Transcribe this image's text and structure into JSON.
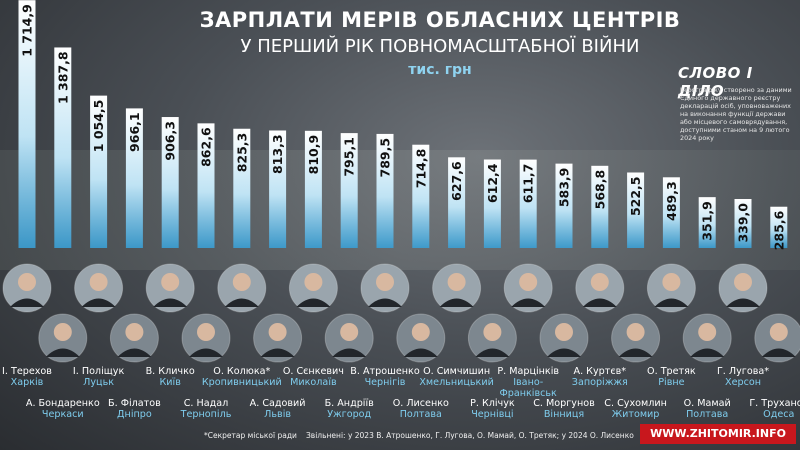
{
  "header": {
    "title": "ЗАРПЛАТИ МЕРІВ ОБЛАСНИХ ЦЕНТРІВ",
    "subtitle": "У ПЕРШИЙ РІК ПОВНОМАСШТАБНОЇ ВІЙНИ",
    "unit": "тис. грн"
  },
  "brand": {
    "logo": "СЛОВО І ДІЛО",
    "note": "Інфографіку створено за даними Єдиного державного реєстру декларацій осіб, уповноважених на виконання функції держави або місцевого самоврядування, доступними станом на 9 лютого 2024 року"
  },
  "footer": {
    "footnote": "*Секретар міської ради",
    "dismissed": "Звільнені: у 2023 В. Атрошенко, Г. Лугова, О. Мамай, О. Третяк; у 2024 О. Лисенко",
    "site": "WWW.ZHITOMIR.INFO"
  },
  "colors": {
    "bar_top": "#ffffff",
    "bar_bottom": "#3a9fd4",
    "value_text": "#111111",
    "city_text": "#7fcdee"
  },
  "chart_data": {
    "type": "bar",
    "title": "ЗАРПЛАТИ МЕРІВ ОБЛАСНИХ ЦЕНТРІВ",
    "subtitle": "У ПЕРШИЙ РІК ПОВНОМАСШТАБНОЇ ВІЙНИ",
    "ylabel": "тис. грн",
    "value_labels": [
      "1 714,9",
      "1 387,8",
      "1 054,5",
      "966,1",
      "906,3",
      "862,6",
      "825,3",
      "813,3",
      "810,9",
      "795,1",
      "789,5",
      "714,8",
      "627,6",
      "612,4",
      "611,7",
      "583,9",
      "568,8",
      "522,5",
      "489,3",
      "351,9",
      "339,0",
      "285,6"
    ],
    "values": [
      1714.9,
      1387.8,
      1054.5,
      966.1,
      906.3,
      862.6,
      825.3,
      813.3,
      810.9,
      795.1,
      789.5,
      714.8,
      627.6,
      612.4,
      611.7,
      583.9,
      568.8,
      522.5,
      489.3,
      351.9,
      339.0,
      285.6
    ],
    "people": [
      {
        "name": "І. Терехов",
        "city": "Харків",
        "row": "top"
      },
      {
        "name": "А. Бондаренко",
        "city": "Черкаси",
        "row": "bottom"
      },
      {
        "name": "І. Поліщук",
        "city": "Луцьк",
        "row": "top"
      },
      {
        "name": "Б. Філатов",
        "city": "Дніпро",
        "row": "bottom"
      },
      {
        "name": "В. Кличко",
        "city": "Київ",
        "row": "top"
      },
      {
        "name": "С. Надал",
        "city": "Тернопіль",
        "row": "bottom"
      },
      {
        "name": "О. Колюка*",
        "city": "Кропивницький",
        "row": "top"
      },
      {
        "name": "А. Садовий",
        "city": "Львів",
        "row": "bottom"
      },
      {
        "name": "О. Сєнкевич",
        "city": "Миколаїв",
        "row": "top"
      },
      {
        "name": "Б. Андріїв",
        "city": "Ужгород",
        "row": "bottom"
      },
      {
        "name": "В. Атрошенко",
        "city": "Чернігів",
        "row": "top"
      },
      {
        "name": "О. Лисенко",
        "city": "Полтава",
        "row": "bottom"
      },
      {
        "name": "О. Симчишин",
        "city": "Хмельницький",
        "row": "top"
      },
      {
        "name": "Р. Клічук",
        "city": "Чернівці",
        "row": "bottom"
      },
      {
        "name": "Р. Марцінків",
        "city": "Івано-Франківськ",
        "row": "top"
      },
      {
        "name": "С. Моргунов",
        "city": "Вінниця",
        "row": "bottom"
      },
      {
        "name": "А. Куртєв*",
        "city": "Запоріжжя",
        "row": "top"
      },
      {
        "name": "С. Сухомлин",
        "city": "Житомир",
        "row": "bottom"
      },
      {
        "name": "О. Третяк",
        "city": "Рівне",
        "row": "top"
      },
      {
        "name": "О. Мамай",
        "city": "Полтава",
        "row": "bottom"
      },
      {
        "name": "Г. Лугова*",
        "city": "Херсон",
        "row": "top"
      },
      {
        "name": "Г. Труханов",
        "city": "Одеса",
        "row": "bottom"
      }
    ]
  }
}
